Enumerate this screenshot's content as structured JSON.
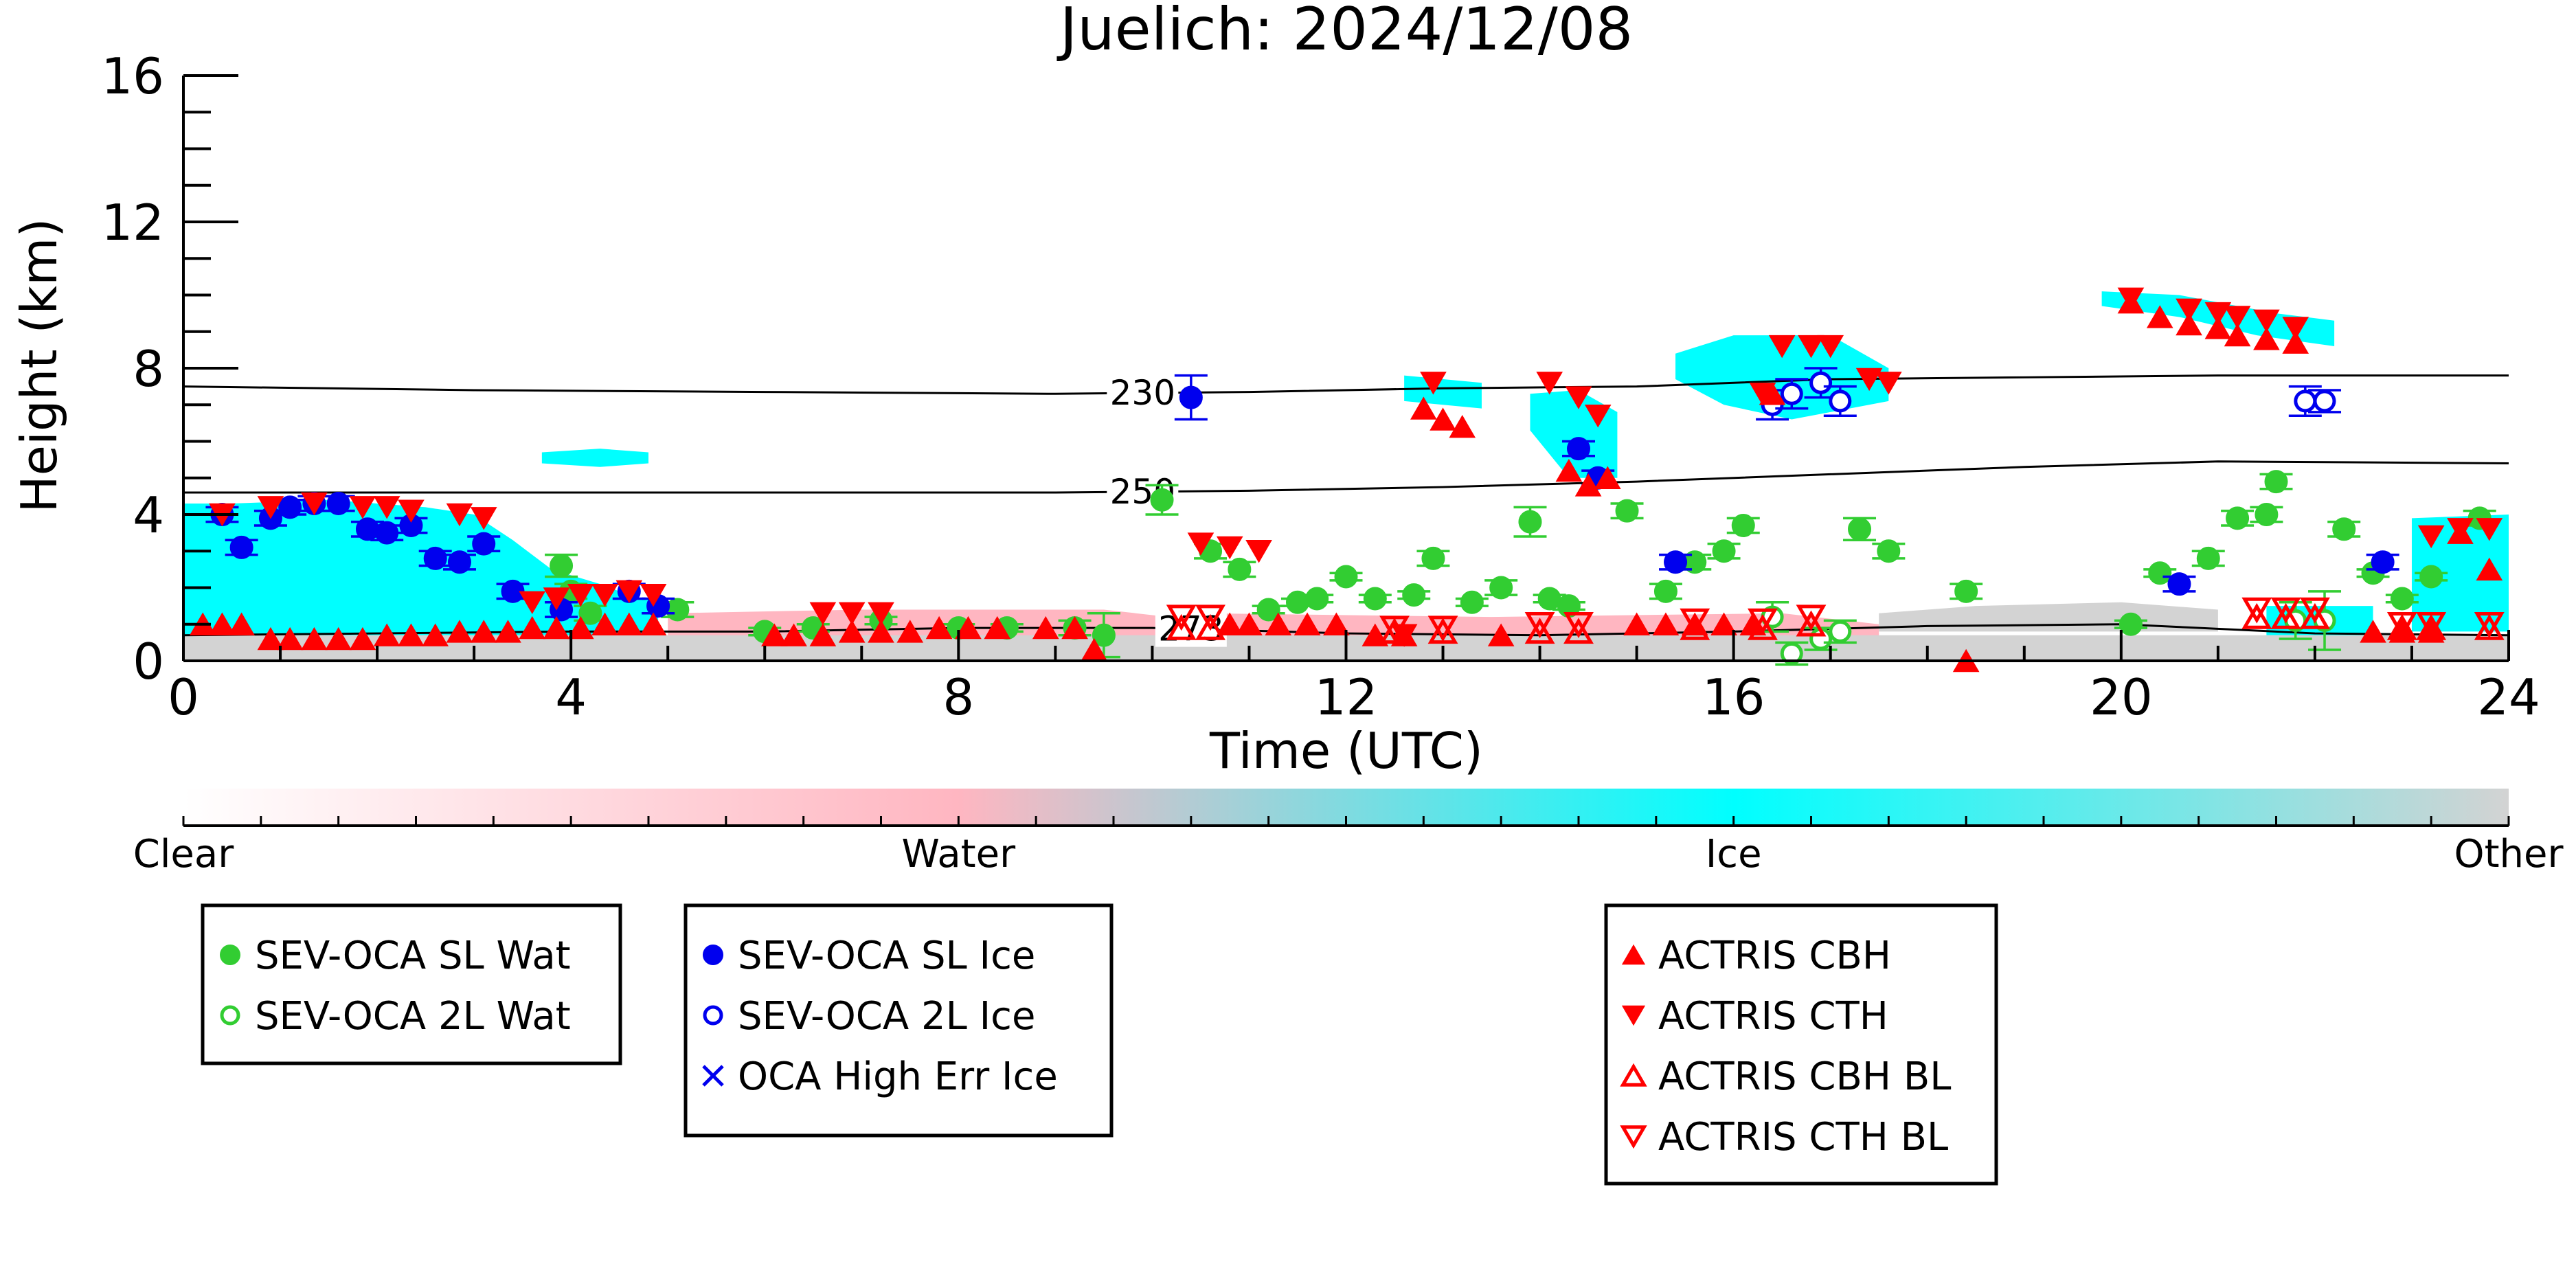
{
  "chart_data": {
    "type": "scatter",
    "title": "Juelich: 2024/12/08",
    "xlabel": "Time (UTC)",
    "ylabel": "Height (km)",
    "xlim": [
      0,
      24
    ],
    "ylim": [
      0,
      16
    ],
    "x_ticks": [
      0,
      4,
      8,
      12,
      16,
      20,
      24
    ],
    "y_ticks": [
      0,
      4,
      8,
      12,
      16
    ],
    "grid": false,
    "colorbar": {
      "labels": [
        "Clear",
        "Water",
        "Ice",
        "Other"
      ],
      "colors": [
        "#ffffff",
        "#ffb6c1",
        "#00ffff",
        "#d3d3d3"
      ]
    },
    "isotherms": [
      {
        "label": "230",
        "label_x": 9.9,
        "x": [
          0,
          3,
          6,
          9,
          11,
          13,
          15,
          17,
          19,
          21,
          24
        ],
        "y": [
          7.5,
          7.4,
          7.35,
          7.3,
          7.35,
          7.45,
          7.5,
          7.7,
          7.75,
          7.8,
          7.8
        ]
      },
      {
        "label": "250",
        "label_x": 9.9,
        "x": [
          0,
          3,
          6,
          9,
          11,
          13,
          15,
          17,
          19,
          21,
          24
        ],
        "y": [
          4.6,
          4.6,
          4.6,
          4.6,
          4.65,
          4.75,
          4.9,
          5.1,
          5.3,
          5.45,
          5.4
        ]
      },
      {
        "label": "273",
        "label_x": 10.4,
        "x": [
          0,
          2,
          4,
          6,
          8,
          10,
          12,
          14,
          16,
          18,
          20,
          22,
          24
        ],
        "y": [
          0.7,
          0.75,
          0.8,
          0.8,
          0.9,
          0.9,
          0.75,
          0.7,
          0.8,
          0.95,
          1.0,
          0.75,
          0.7
        ]
      }
    ],
    "cloud_regions": [
      {
        "type": "Ice",
        "x": [
          0,
          0.5,
          1.5,
          2.5,
          3.0,
          3.4,
          3.8,
          4.3,
          4.6,
          4.9,
          4.9,
          4.3,
          3.6,
          2.7,
          1.8,
          0.9,
          0
        ],
        "y": [
          4.3,
          4.3,
          4.4,
          4.2,
          4.0,
          3.3,
          2.5,
          2.1,
          1.8,
          1.6,
          0.7,
          0.7,
          0.7,
          0.7,
          0.7,
          0.7,
          0.7
        ]
      },
      {
        "type": "Ice",
        "x": [
          3.7,
          4.3,
          4.8,
          4.8,
          4.3,
          3.7
        ],
        "y": [
          5.7,
          5.8,
          5.7,
          5.4,
          5.3,
          5.4
        ]
      },
      {
        "type": "Ice",
        "x": [
          13.9,
          14.4,
          14.8,
          14.8,
          14.3,
          13.9
        ],
        "y": [
          7.3,
          7.4,
          6.8,
          5.0,
          5.0,
          6.3
        ]
      },
      {
        "type": "Ice",
        "x": [
          15.4,
          16.0,
          17.0,
          17.6,
          17.6,
          16.6,
          15.9,
          15.4
        ],
        "y": [
          8.4,
          8.9,
          8.9,
          8.0,
          7.1,
          6.6,
          7.0,
          7.7
        ]
      },
      {
        "type": "Ice",
        "x": [
          19.8,
          20.6,
          21.6,
          22.2,
          22.2,
          21.4,
          20.6,
          19.8
        ],
        "y": [
          10.1,
          10.0,
          9.5,
          9.3,
          8.6,
          8.9,
          9.4,
          9.7
        ]
      },
      {
        "type": "Ice",
        "x": [
          23.0,
          24.0,
          24.0,
          23.0
        ],
        "y": [
          3.9,
          4.0,
          0.8,
          0.8
        ]
      },
      {
        "type": "Ice",
        "x": [
          21.5,
          22.6,
          22.6,
          21.5
        ],
        "y": [
          1.5,
          1.5,
          0.7,
          0.7
        ]
      },
      {
        "type": "Ice",
        "x": [
          12.6,
          13.4,
          13.4,
          12.6
        ],
        "y": [
          7.8,
          7.6,
          6.9,
          7.1
        ]
      },
      {
        "type": "Water",
        "x": [
          5.0,
          7.0,
          9.5,
          10.5,
          10.5,
          5.0
        ],
        "y": [
          1.3,
          1.4,
          1.4,
          1.1,
          0.6,
          0.6
        ]
      },
      {
        "type": "Water",
        "x": [
          10.5,
          13.5,
          16.5,
          17.5,
          17.5,
          10.5
        ],
        "y": [
          1.3,
          1.2,
          1.3,
          1.0,
          0.6,
          0.6
        ]
      },
      {
        "type": "Other",
        "x": [
          0,
          24,
          24,
          0
        ],
        "y": [
          0.7,
          0.7,
          0,
          0
        ]
      },
      {
        "type": "Other",
        "x": [
          17.5,
          18.5,
          20,
          21,
          21,
          17.5
        ],
        "y": [
          1.3,
          1.5,
          1.6,
          1.4,
          0.8,
          0.8
        ]
      }
    ],
    "series": [
      {
        "name": "SEV-OCA SL Wat",
        "marker": "circle-filled",
        "color": "#32cd32",
        "x": [
          4.2,
          4.0,
          3.9,
          5.1,
          6.0,
          6.5,
          7.2,
          8.0,
          8.5,
          9.2,
          9.5,
          10.1,
          10.6,
          10.9,
          11.2,
          11.5,
          11.7,
          12.0,
          12.3,
          12.7,
          12.9,
          13.3,
          13.6,
          13.9,
          14.1,
          14.3,
          14.9,
          15.3,
          15.6,
          15.9,
          16.1,
          17.3,
          17.6,
          18.4,
          20.1,
          20.4,
          20.9,
          21.2,
          21.5,
          21.6,
          22.3,
          22.6,
          22.9,
          23.2,
          23.7
        ],
        "y": [
          1.3,
          1.9,
          2.6,
          1.4,
          0.8,
          0.9,
          1.1,
          0.9,
          0.9,
          0.9,
          0.7,
          4.4,
          3.0,
          2.5,
          1.4,
          1.6,
          1.7,
          2.3,
          1.7,
          1.8,
          2.8,
          1.6,
          2.0,
          3.8,
          1.7,
          1.5,
          4.1,
          1.9,
          2.7,
          3.0,
          3.7,
          3.6,
          3.0,
          1.9,
          1.0,
          2.4,
          2.8,
          3.9,
          4.0,
          4.9,
          3.6,
          2.4,
          1.7,
          2.3,
          3.9
        ],
        "err": [
          0.2,
          0.2,
          0.3,
          0.2,
          0.1,
          0.1,
          0.1,
          0.1,
          0.1,
          0.2,
          0.6,
          0.4,
          0.2,
          0.2,
          0.1,
          0.1,
          0.1,
          0.1,
          0.1,
          0.1,
          0.2,
          0.1,
          0.2,
          0.4,
          0.1,
          0.1,
          0.2,
          0.2,
          0.2,
          0.2,
          0.2,
          0.3,
          0.2,
          0.2,
          0.1,
          0.1,
          0.2,
          0.2,
          0.2,
          0.2,
          0.2,
          0.1,
          0.1,
          0.1,
          0.2
        ]
      },
      {
        "name": "SEV-OCA 2L Wat",
        "marker": "circle-open",
        "color": "#32cd32",
        "x": [
          16.4,
          16.6,
          16.9,
          17.1,
          21.8,
          22.1
        ],
        "y": [
          1.2,
          0.2,
          0.6,
          0.8,
          1.1,
          1.1
        ],
        "err": [
          0.4,
          0.3,
          0.3,
          0.3,
          0.5,
          0.8
        ]
      },
      {
        "name": "SEV-OCA SL Ice",
        "marker": "circle-filled",
        "color": "#0000ee",
        "x": [
          0.4,
          0.6,
          0.9,
          1.1,
          1.35,
          1.6,
          1.9,
          2.1,
          2.35,
          2.6,
          2.85,
          3.1,
          3.4,
          3.9,
          4.6,
          4.9,
          10.4,
          14.4,
          14.6,
          15.4,
          20.6,
          22.7
        ],
        "y": [
          4.0,
          3.1,
          3.9,
          4.2,
          4.3,
          4.3,
          3.6,
          3.5,
          3.7,
          2.8,
          2.7,
          3.2,
          1.9,
          1.4,
          1.9,
          1.5,
          7.2,
          5.8,
          5.0,
          2.7,
          2.1,
          2.7
        ],
        "err": [
          0.2,
          0.2,
          0.2,
          0.2,
          0.2,
          0.2,
          0.2,
          0.2,
          0.2,
          0.2,
          0.2,
          0.2,
          0.2,
          0.2,
          0.2,
          0.2,
          0.6,
          0.2,
          0.2,
          0.2,
          0.2,
          0.2
        ]
      },
      {
        "name": "SEV-OCA 2L Ice",
        "marker": "circle-open",
        "color": "#0000ee",
        "x": [
          16.4,
          16.6,
          16.9,
          17.1,
          21.9,
          22.1
        ],
        "y": [
          7.0,
          7.3,
          7.6,
          7.1,
          7.1,
          7.1
        ],
        "err": [
          0.4,
          0.4,
          0.4,
          0.4,
          0.4,
          0.3
        ]
      },
      {
        "name": "OCA High Err Ice",
        "marker": "x",
        "color": "#0000ee",
        "x": [],
        "y": []
      },
      {
        "name": "ACTRIS CBH",
        "marker": "triangle-up-filled",
        "color": "#ff0000",
        "x": [
          0.2,
          0.4,
          0.6,
          0.9,
          1.1,
          1.35,
          1.6,
          1.85,
          2.1,
          2.35,
          2.6,
          2.85,
          3.1,
          3.35,
          3.6,
          3.85,
          4.1,
          4.35,
          4.6,
          4.85,
          6.1,
          6.3,
          6.6,
          6.9,
          7.2,
          7.5,
          7.8,
          8.1,
          8.4,
          8.9,
          9.2,
          9.4,
          10.8,
          11.0,
          11.3,
          11.6,
          11.9,
          12.3,
          12.6,
          12.8,
          13.0,
          13.2,
          13.6,
          14.3,
          14.5,
          14.7,
          15.0,
          15.3,
          15.6,
          15.9,
          16.2,
          16.4,
          18.4,
          20.1,
          20.4,
          20.7,
          21.0,
          21.2,
          21.5,
          21.8,
          22.6,
          22.9,
          23.2,
          23.5,
          23.8
        ],
        "y": [
          1.0,
          1.0,
          1.0,
          0.6,
          0.6,
          0.6,
          0.6,
          0.6,
          0.7,
          0.7,
          0.7,
          0.8,
          0.8,
          0.8,
          0.9,
          0.9,
          0.9,
          1.0,
          1.0,
          1.0,
          0.7,
          0.7,
          0.7,
          0.8,
          0.8,
          0.8,
          0.9,
          0.9,
          0.9,
          0.9,
          0.9,
          0.3,
          1.0,
          1.0,
          1.0,
          1.0,
          1.0,
          0.7,
          0.7,
          6.9,
          6.6,
          6.4,
          0.7,
          5.2,
          4.8,
          5.0,
          1.0,
          1.0,
          1.0,
          1.0,
          1.0,
          7.3,
          0.0,
          9.8,
          9.4,
          9.2,
          9.1,
          8.9,
          8.8,
          8.7,
          0.8,
          0.8,
          0.8,
          3.5,
          2.5
        ],
        "size": 1
      },
      {
        "name": "ACTRIS CTH",
        "marker": "triangle-down-filled",
        "color": "#ff0000",
        "x": [
          0.4,
          0.9,
          1.35,
          1.85,
          2.1,
          2.35,
          2.85,
          3.1,
          3.6,
          3.85,
          4.1,
          4.35,
          4.6,
          4.85,
          6.6,
          6.9,
          7.2,
          10.5,
          10.8,
          11.1,
          12.6,
          12.9,
          14.1,
          14.4,
          14.6,
          16.3,
          16.5,
          16.8,
          17.0,
          17.4,
          17.6,
          20.1,
          20.7,
          21.0,
          21.2,
          21.5,
          21.8,
          23.2,
          23.5,
          23.8
        ],
        "y": [
          4.0,
          4.2,
          4.3,
          4.2,
          4.2,
          4.1,
          4.0,
          3.9,
          1.6,
          1.7,
          1.8,
          1.8,
          1.9,
          1.8,
          1.3,
          1.3,
          1.3,
          3.2,
          3.1,
          3.0,
          0.7,
          7.6,
          7.6,
          7.2,
          6.7,
          7.3,
          8.6,
          8.6,
          8.6,
          7.7,
          7.6,
          9.9,
          9.6,
          9.5,
          9.4,
          9.3,
          9.1,
          3.4,
          3.6,
          3.6
        ],
        "size": 1
      },
      {
        "name": "ACTRIS CBH BL",
        "marker": "triangle-up-open",
        "color": "#ff0000",
        "x": [
          10.3,
          10.6,
          12.5,
          13.0,
          14.0,
          14.4,
          15.6,
          16.3,
          16.8,
          21.4,
          21.7,
          22.0,
          22.9,
          23.2,
          23.8
        ],
        "y": [
          0.9,
          0.9,
          0.8,
          0.8,
          0.8,
          0.8,
          0.9,
          0.9,
          1.0,
          1.2,
          1.2,
          1.2,
          0.9,
          0.9,
          0.9
        ]
      },
      {
        "name": "ACTRIS CTH BL",
        "marker": "triangle-down-open",
        "color": "#ff0000",
        "x": [
          10.3,
          10.6,
          12.5,
          13.0,
          14.0,
          14.4,
          15.6,
          16.3,
          16.8,
          21.4,
          21.7,
          22.0,
          22.9,
          23.2,
          23.8
        ],
        "y": [
          1.2,
          1.2,
          0.9,
          0.9,
          1.0,
          1.0,
          1.1,
          1.1,
          1.2,
          1.4,
          1.4,
          1.4,
          1.0,
          1.0,
          1.0
        ]
      }
    ],
    "legend": [
      {
        "name": "SEV-OCA SL Wat",
        "marker": "circle-filled",
        "color": "#32cd32"
      },
      {
        "name": "SEV-OCA 2L Wat",
        "marker": "circle-open",
        "color": "#32cd32"
      },
      {
        "name": "SEV-OCA SL Ice",
        "marker": "circle-filled",
        "color": "#0000ee"
      },
      {
        "name": "SEV-OCA 2L Ice",
        "marker": "circle-open",
        "color": "#0000ee"
      },
      {
        "name": "OCA High Err Ice",
        "marker": "x",
        "color": "#0000ee"
      },
      {
        "name": "ACTRIS CBH",
        "marker": "triangle-up-filled",
        "color": "#ff0000"
      },
      {
        "name": "ACTRIS CTH",
        "marker": "triangle-down-filled",
        "color": "#ff0000"
      },
      {
        "name": "ACTRIS CBH BL",
        "marker": "triangle-up-open",
        "color": "#ff0000"
      },
      {
        "name": "ACTRIS CTH BL",
        "marker": "triangle-down-open",
        "color": "#ff0000"
      }
    ]
  }
}
